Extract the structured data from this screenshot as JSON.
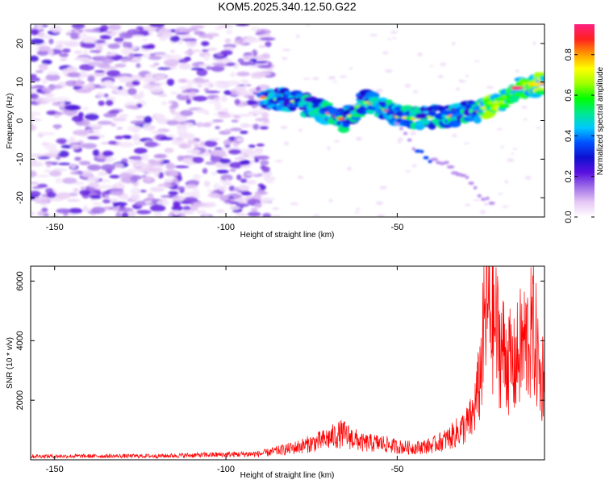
{
  "title": "KOM5.2025.340.12.50.G22",
  "chart_data": [
    {
      "type": "heatmap",
      "name": "spectrogram",
      "xlabel": "Height of straight line (km)",
      "ylabel": "Frequency (Hz)",
      "xlim": [
        -157,
        -7
      ],
      "ylim": [
        -25,
        25
      ],
      "xticks": [
        -150,
        -100,
        -50
      ],
      "yticks": [
        -20,
        -10,
        0,
        10,
        20
      ],
      "colorbar": {
        "label": "Normalized spectral amplitude",
        "range": [
          0,
          0.95
        ],
        "ticks": [
          0.0,
          0.2,
          0.4,
          0.6,
          0.8
        ],
        "colors": [
          "#ffffff",
          "#e6c8f5",
          "#a070e8",
          "#5a10e0",
          "#1010d0",
          "#0050ff",
          "#00c8ff",
          "#00e890",
          "#00ff00",
          "#a0ff00",
          "#ffff00",
          "#ff9900",
          "#ff2020",
          "#ff2080"
        ]
      },
      "signal_track": {
        "description_points": [
          [
            -89,
            6
          ],
          [
            -80,
            5
          ],
          [
            -70,
            2
          ],
          [
            -65,
            0
          ],
          [
            -60,
            5
          ],
          [
            -55,
            4
          ],
          [
            -50,
            1
          ],
          [
            -45,
            0.5
          ],
          [
            -40,
            1
          ],
          [
            -35,
            1
          ],
          [
            -30,
            2
          ],
          [
            -25,
            3
          ],
          [
            -20,
            5
          ],
          [
            -15,
            8
          ],
          [
            -10,
            9
          ],
          [
            -7,
            10
          ]
        ],
        "secondary_branch": [
          [
            -50,
            0
          ],
          [
            -45,
            -7
          ],
          [
            -42,
            -9
          ],
          [
            -30,
            -14
          ],
          [
            -25,
            -20
          ],
          [
            -22,
            -21
          ]
        ]
      }
    },
    {
      "type": "line",
      "name": "snr",
      "xlabel": "Height of straight line (km)",
      "ylabel": "SNR (10 * v/v)",
      "xlim": [
        -157,
        -7
      ],
      "ylim": [
        0,
        6500
      ],
      "xticks": [
        -150,
        -100,
        -50
      ],
      "yticks": [
        2000,
        4000,
        6000
      ],
      "color": "#ff0000",
      "envelope": {
        "x": [
          -157,
          -120,
          -90,
          -80,
          -72,
          -66,
          -60,
          -55,
          -50,
          -45,
          -40,
          -35,
          -30,
          -28,
          -26,
          -24,
          -22,
          -20,
          -18,
          -16,
          -14,
          -12,
          -10,
          -8,
          -7
        ],
        "y": [
          150,
          160,
          250,
          500,
          800,
          1100,
          700,
          700,
          550,
          500,
          600,
          900,
          1400,
          1800,
          3200,
          6450,
          5900,
          4800,
          4300,
          3800,
          4700,
          5000,
          5400,
          3100,
          4200
        ]
      }
    }
  ]
}
